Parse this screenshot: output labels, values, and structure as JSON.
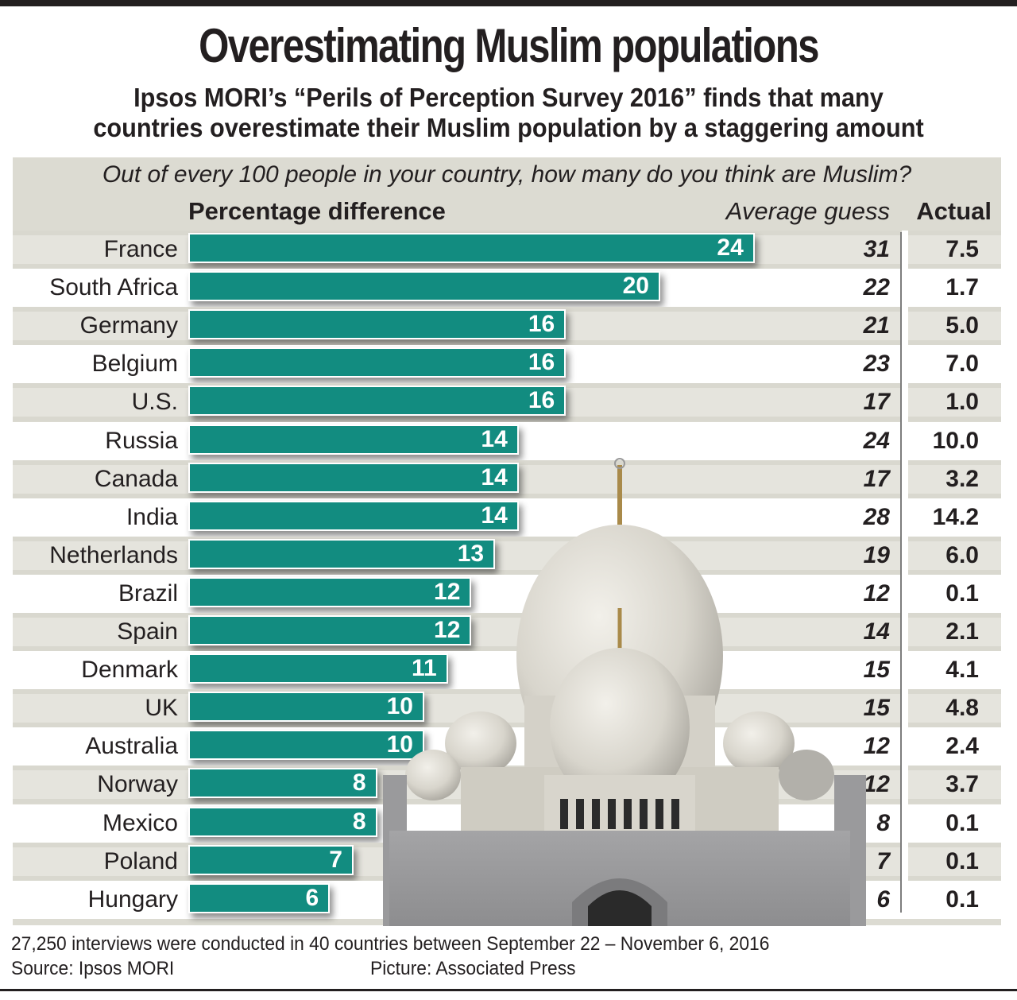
{
  "header": {
    "title": "Overestimating Muslim populations",
    "subtitle_line1": "Ipsos MORI’s “Perils of Perception Survey 2016” finds that many",
    "subtitle_line2": "countries overestimate their Muslim population by a staggering amount"
  },
  "question": "Out of every 100 people in your country, how many do you think are Muslim?",
  "columns": {
    "difference": "Percentage difference",
    "average_guess": "Average guess",
    "actual": "Actual"
  },
  "colors": {
    "bar": "#128c80",
    "panel": "#dcdbd2",
    "row_shade": "#e5e4dd",
    "text": "#231f20"
  },
  "chart_data": {
    "type": "bar",
    "orientation": "horizontal",
    "title": "Overestimating Muslim populations",
    "xlabel": "Percentage difference",
    "ylabel": "",
    "xlim": [
      0,
      24
    ],
    "grid": false,
    "categories": [
      "France",
      "South Africa",
      "Germany",
      "Belgium",
      "U.S.",
      "Russia",
      "Canada",
      "India",
      "Netherlands",
      "Brazil",
      "Spain",
      "Denmark",
      "UK",
      "Australia",
      "Norway",
      "Mexico",
      "Poland",
      "Hungary"
    ],
    "series": [
      {
        "name": "Percentage difference",
        "values": [
          24,
          20,
          16,
          16,
          16,
          14,
          14,
          14,
          13,
          12,
          12,
          11,
          10,
          10,
          8,
          8,
          7,
          6
        ]
      },
      {
        "name": "Average guess",
        "values": [
          31,
          22,
          21,
          23,
          17,
          24,
          17,
          28,
          19,
          12,
          14,
          15,
          15,
          12,
          12,
          8,
          7,
          6
        ]
      },
      {
        "name": "Actual",
        "values": [
          "7.5",
          "1.7",
          "5.0",
          "7.0",
          "1.0",
          "10.0",
          "3.2",
          "14.2",
          "6.0",
          "0.1",
          "2.1",
          "4.1",
          "4.8",
          "2.4",
          "3.7",
          "0.1",
          "0.1",
          "0.1"
        ]
      }
    ]
  },
  "image": {
    "subject": "mosque-photo"
  },
  "footer": {
    "note": "27,250 interviews were conducted in 40 countries between September 22 – November 6, 2016",
    "source": "Source: Ipsos MORI",
    "picture": "Picture: Associated Press"
  }
}
